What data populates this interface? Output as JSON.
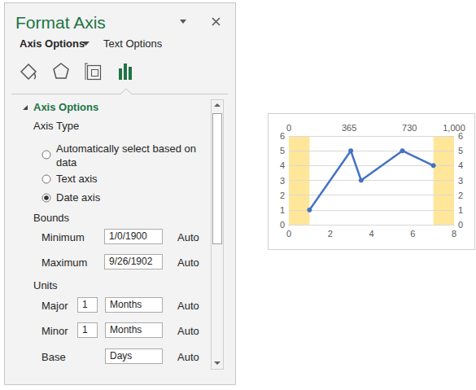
{
  "pane": {
    "title": "Format Axis",
    "tabs": [
      "Axis Options",
      "Text Options"
    ],
    "section": "Axis Options",
    "axis_type": {
      "heading": "Axis Type",
      "options": [
        "Automatically select based on data",
        "Text axis",
        "Date axis"
      ],
      "selected": "Date axis"
    },
    "bounds": {
      "heading": "Bounds",
      "rows": [
        {
          "label": "Minimum",
          "value": "1/0/1900",
          "reset": "Auto"
        },
        {
          "label": "Maximum",
          "value": "9/26/1902",
          "reset": "Auto"
        }
      ]
    },
    "units": {
      "heading": "Units",
      "rows": [
        {
          "label": "Major",
          "count": "1",
          "unit": "Months",
          "reset": "Auto"
        },
        {
          "label": "Minor",
          "count": "1",
          "unit": "Months",
          "reset": "Auto"
        },
        {
          "label": "Base",
          "unit": "Days",
          "reset": "Auto"
        }
      ]
    }
  },
  "chart_data": {
    "type": "line",
    "x": [
      1,
      3,
      3.5,
      5.5,
      7
    ],
    "values": [
      1,
      5,
      3,
      5,
      4
    ],
    "color": "#4472c4",
    "marker": "circle",
    "xlim": [
      0,
      8
    ],
    "xticks": [
      0,
      2,
      4,
      6,
      8
    ],
    "x2lim": [
      0,
      1000
    ],
    "x2ticks": [
      0,
      365,
      730
    ],
    "ylim": [
      0,
      6
    ],
    "yticks": [
      0,
      1,
      2,
      3,
      4,
      5,
      6
    ],
    "y2lim": [
      0,
      6
    ],
    "y2ticks": [
      0,
      1,
      2,
      3,
      4,
      5,
      6
    ],
    "highlight_range": [
      1,
      7
    ],
    "grid": true
  }
}
